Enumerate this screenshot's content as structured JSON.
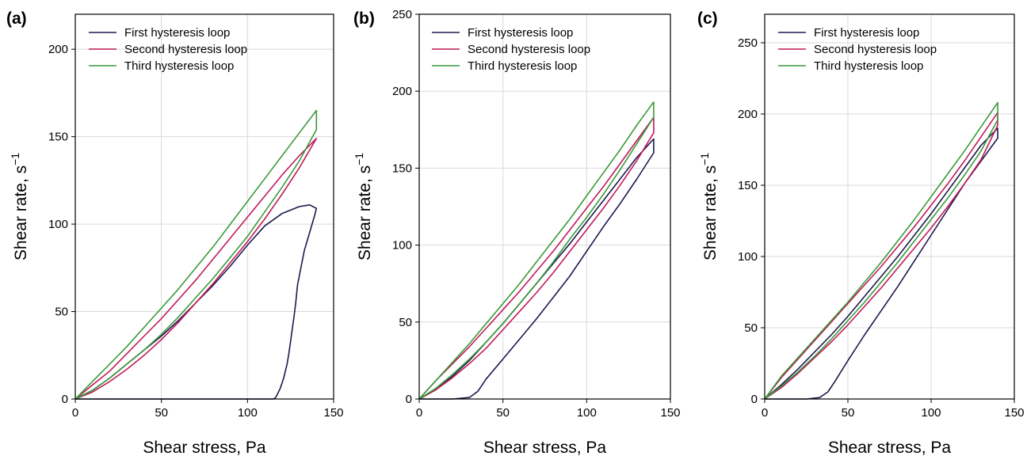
{
  "chart_data": [
    {
      "type": "line",
      "panel_label": "(a)",
      "xlabel": "Shear stress, Pa",
      "ylabel": "Shear rate,  s",
      "ylabel_superscript": "−1",
      "xlim": [
        0,
        150
      ],
      "ylim": [
        0,
        220
      ],
      "xticks": [
        0,
        50,
        100,
        150
      ],
      "yticks": [
        0,
        50,
        100,
        150,
        200
      ],
      "grid": true,
      "legend": "top-left",
      "series": [
        {
          "name": "First hysteresis loop",
          "color": "#1c1a4e",
          "x": [
            0,
            10,
            20,
            30,
            40,
            50,
            60,
            70,
            80,
            90,
            100,
            110,
            120,
            130,
            136,
            140,
            139,
            136,
            133,
            131,
            129,
            128,
            127,
            126,
            125,
            124,
            123,
            121,
            119,
            117,
            116,
            115,
            100,
            50,
            0
          ],
          "y": [
            0,
            5,
            12,
            20,
            28,
            36,
            45,
            55,
            65,
            76,
            88,
            99,
            106,
            110,
            111,
            109,
            105,
            95,
            85,
            75,
            65,
            55,
            47,
            40,
            33,
            26,
            20,
            12,
            6,
            2,
            0.5,
            0,
            0,
            0,
            0
          ]
        },
        {
          "name": "Second hysteresis loop",
          "color": "#c2185b",
          "x": [
            0,
            10,
            20,
            30,
            40,
            50,
            60,
            70,
            80,
            90,
            100,
            110,
            120,
            130,
            140,
            140,
            130,
            120,
            110,
            100,
            90,
            80,
            70,
            60,
            50,
            40,
            30,
            20,
            10,
            0
          ],
          "y": [
            0,
            4,
            10,
            17,
            25,
            34,
            44,
            55,
            66,
            78,
            90,
            103,
            117,
            132,
            149,
            149,
            139,
            128,
            116,
            104,
            92,
            80,
            68,
            57,
            46,
            36,
            26,
            16,
            8,
            0
          ]
        },
        {
          "name": "Third hysteresis loop",
          "color": "#3a9a3a",
          "x": [
            0,
            10,
            20,
            30,
            40,
            50,
            60,
            70,
            80,
            90,
            100,
            110,
            120,
            130,
            140,
            140,
            130,
            120,
            110,
            100,
            90,
            80,
            70,
            60,
            50,
            40,
            30,
            20,
            10,
            0
          ],
          "y": [
            0,
            5,
            12,
            20,
            28,
            37,
            47,
            58,
            69,
            81,
            93,
            107,
            121,
            136,
            154,
            165,
            152,
            139,
            126,
            113,
            100,
            87,
            75,
            63,
            52,
            41,
            30,
            20,
            10,
            0
          ]
        }
      ]
    },
    {
      "type": "line",
      "panel_label": "(b)",
      "xlabel": "Shear stress, Pa",
      "ylabel": "Shear rate,  s",
      "ylabel_superscript": "−1",
      "xlim": [
        0,
        150
      ],
      "ylim": [
        0,
        250
      ],
      "xticks": [
        0,
        50,
        100,
        150
      ],
      "yticks": [
        0,
        50,
        100,
        150,
        200,
        250
      ],
      "grid": true,
      "legend": "top-right",
      "series": [
        {
          "name": "First hysteresis loop",
          "color": "#1c1a4e",
          "x": [
            0,
            20,
            30,
            35,
            40,
            50,
            60,
            70,
            80,
            90,
            100,
            110,
            120,
            130,
            140,
            140,
            130,
            120,
            110,
            100,
            90,
            80,
            70,
            60,
            50,
            40,
            30,
            20,
            10,
            0
          ],
          "y": [
            0,
            0,
            1,
            5,
            13,
            26,
            39,
            52,
            66,
            80,
            96,
            112,
            127,
            143,
            160,
            169,
            157,
            143,
            129,
            115,
            101,
            88,
            75,
            62,
            49,
            37,
            25,
            15,
            6,
            0
          ]
        },
        {
          "name": "Second hysteresis loop",
          "color": "#c2185b",
          "x": [
            0,
            10,
            20,
            30,
            40,
            50,
            60,
            70,
            80,
            90,
            100,
            110,
            120,
            130,
            140,
            140,
            130,
            120,
            110,
            100,
            90,
            80,
            70,
            60,
            50,
            40,
            30,
            20,
            10,
            0
          ],
          "y": [
            0,
            6,
            14,
            23,
            33,
            45,
            57,
            69,
            82,
            96,
            110,
            124,
            139,
            155,
            173,
            183,
            168,
            153,
            138,
            124,
            110,
            96,
            83,
            70,
            58,
            46,
            34,
            23,
            12,
            0
          ]
        },
        {
          "name": "Third hysteresis loop",
          "color": "#3a9a3a",
          "x": [
            0,
            10,
            20,
            30,
            40,
            50,
            60,
            70,
            80,
            90,
            100,
            110,
            120,
            130,
            140,
            140,
            130,
            120,
            110,
            100,
            90,
            80,
            70,
            60,
            50,
            40,
            30,
            20,
            10,
            0
          ],
          "y": [
            0,
            7,
            16,
            26,
            37,
            49,
            62,
            75,
            89,
            104,
            118,
            133,
            149,
            166,
            183,
            193,
            178,
            162,
            147,
            132,
            117,
            103,
            89,
            75,
            62,
            49,
            36,
            24,
            12,
            0
          ]
        }
      ]
    },
    {
      "type": "line",
      "panel_label": "(c)",
      "xlabel": "Shear stress, Pa",
      "ylabel": "Shear rate,  s",
      "ylabel_superscript": "−1",
      "xlim": [
        0,
        150
      ],
      "ylim": [
        0,
        270
      ],
      "xticks": [
        0,
        50,
        100,
        150
      ],
      "yticks": [
        0,
        50,
        100,
        150,
        200,
        250
      ],
      "grid": true,
      "legend": "top-right",
      "series": [
        {
          "name": "First hysteresis loop",
          "color": "#1c1a4e",
          "x": [
            0,
            25,
            33,
            38,
            42,
            50,
            60,
            70,
            80,
            90,
            100,
            110,
            120,
            130,
            140,
            140,
            130,
            120,
            110,
            100,
            90,
            80,
            70,
            60,
            50,
            40,
            30,
            20,
            10,
            0
          ],
          "y": [
            0,
            0,
            1,
            5,
            12,
            27,
            45,
            62,
            79,
            97,
            115,
            133,
            151,
            167,
            183,
            190,
            178,
            162,
            146,
            130,
            115,
            100,
            86,
            72,
            58,
            45,
            33,
            21,
            10,
            0
          ]
        },
        {
          "name": "Second hysteresis loop",
          "color": "#c2185b",
          "x": [
            0,
            10,
            20,
            30,
            40,
            50,
            60,
            70,
            80,
            90,
            100,
            110,
            120,
            130,
            140,
            140,
            130,
            120,
            110,
            100,
            90,
            80,
            70,
            60,
            50,
            40,
            30,
            20,
            10,
            0
          ],
          "y": [
            0,
            8,
            18,
            29,
            40,
            52,
            65,
            78,
            92,
            106,
            120,
            135,
            151,
            168,
            192,
            201,
            184,
            167,
            151,
            136,
            121,
            107,
            93,
            80,
            67,
            54,
            41,
            28,
            15,
            0
          ]
        },
        {
          "name": "Third hysteresis loop",
          "color": "#3a9a3a",
          "x": [
            0,
            10,
            20,
            30,
            40,
            50,
            60,
            70,
            80,
            90,
            100,
            110,
            120,
            130,
            140,
            140,
            130,
            120,
            110,
            100,
            90,
            80,
            70,
            60,
            50,
            40,
            30,
            20,
            10,
            0
          ],
          "y": [
            0,
            9,
            19,
            30,
            42,
            55,
            68,
            82,
            96,
            111,
            126,
            141,
            157,
            174,
            196,
            208,
            191,
            174,
            158,
            142,
            126,
            111,
            96,
            82,
            68,
            55,
            42,
            29,
            16,
            0
          ]
        }
      ]
    }
  ]
}
